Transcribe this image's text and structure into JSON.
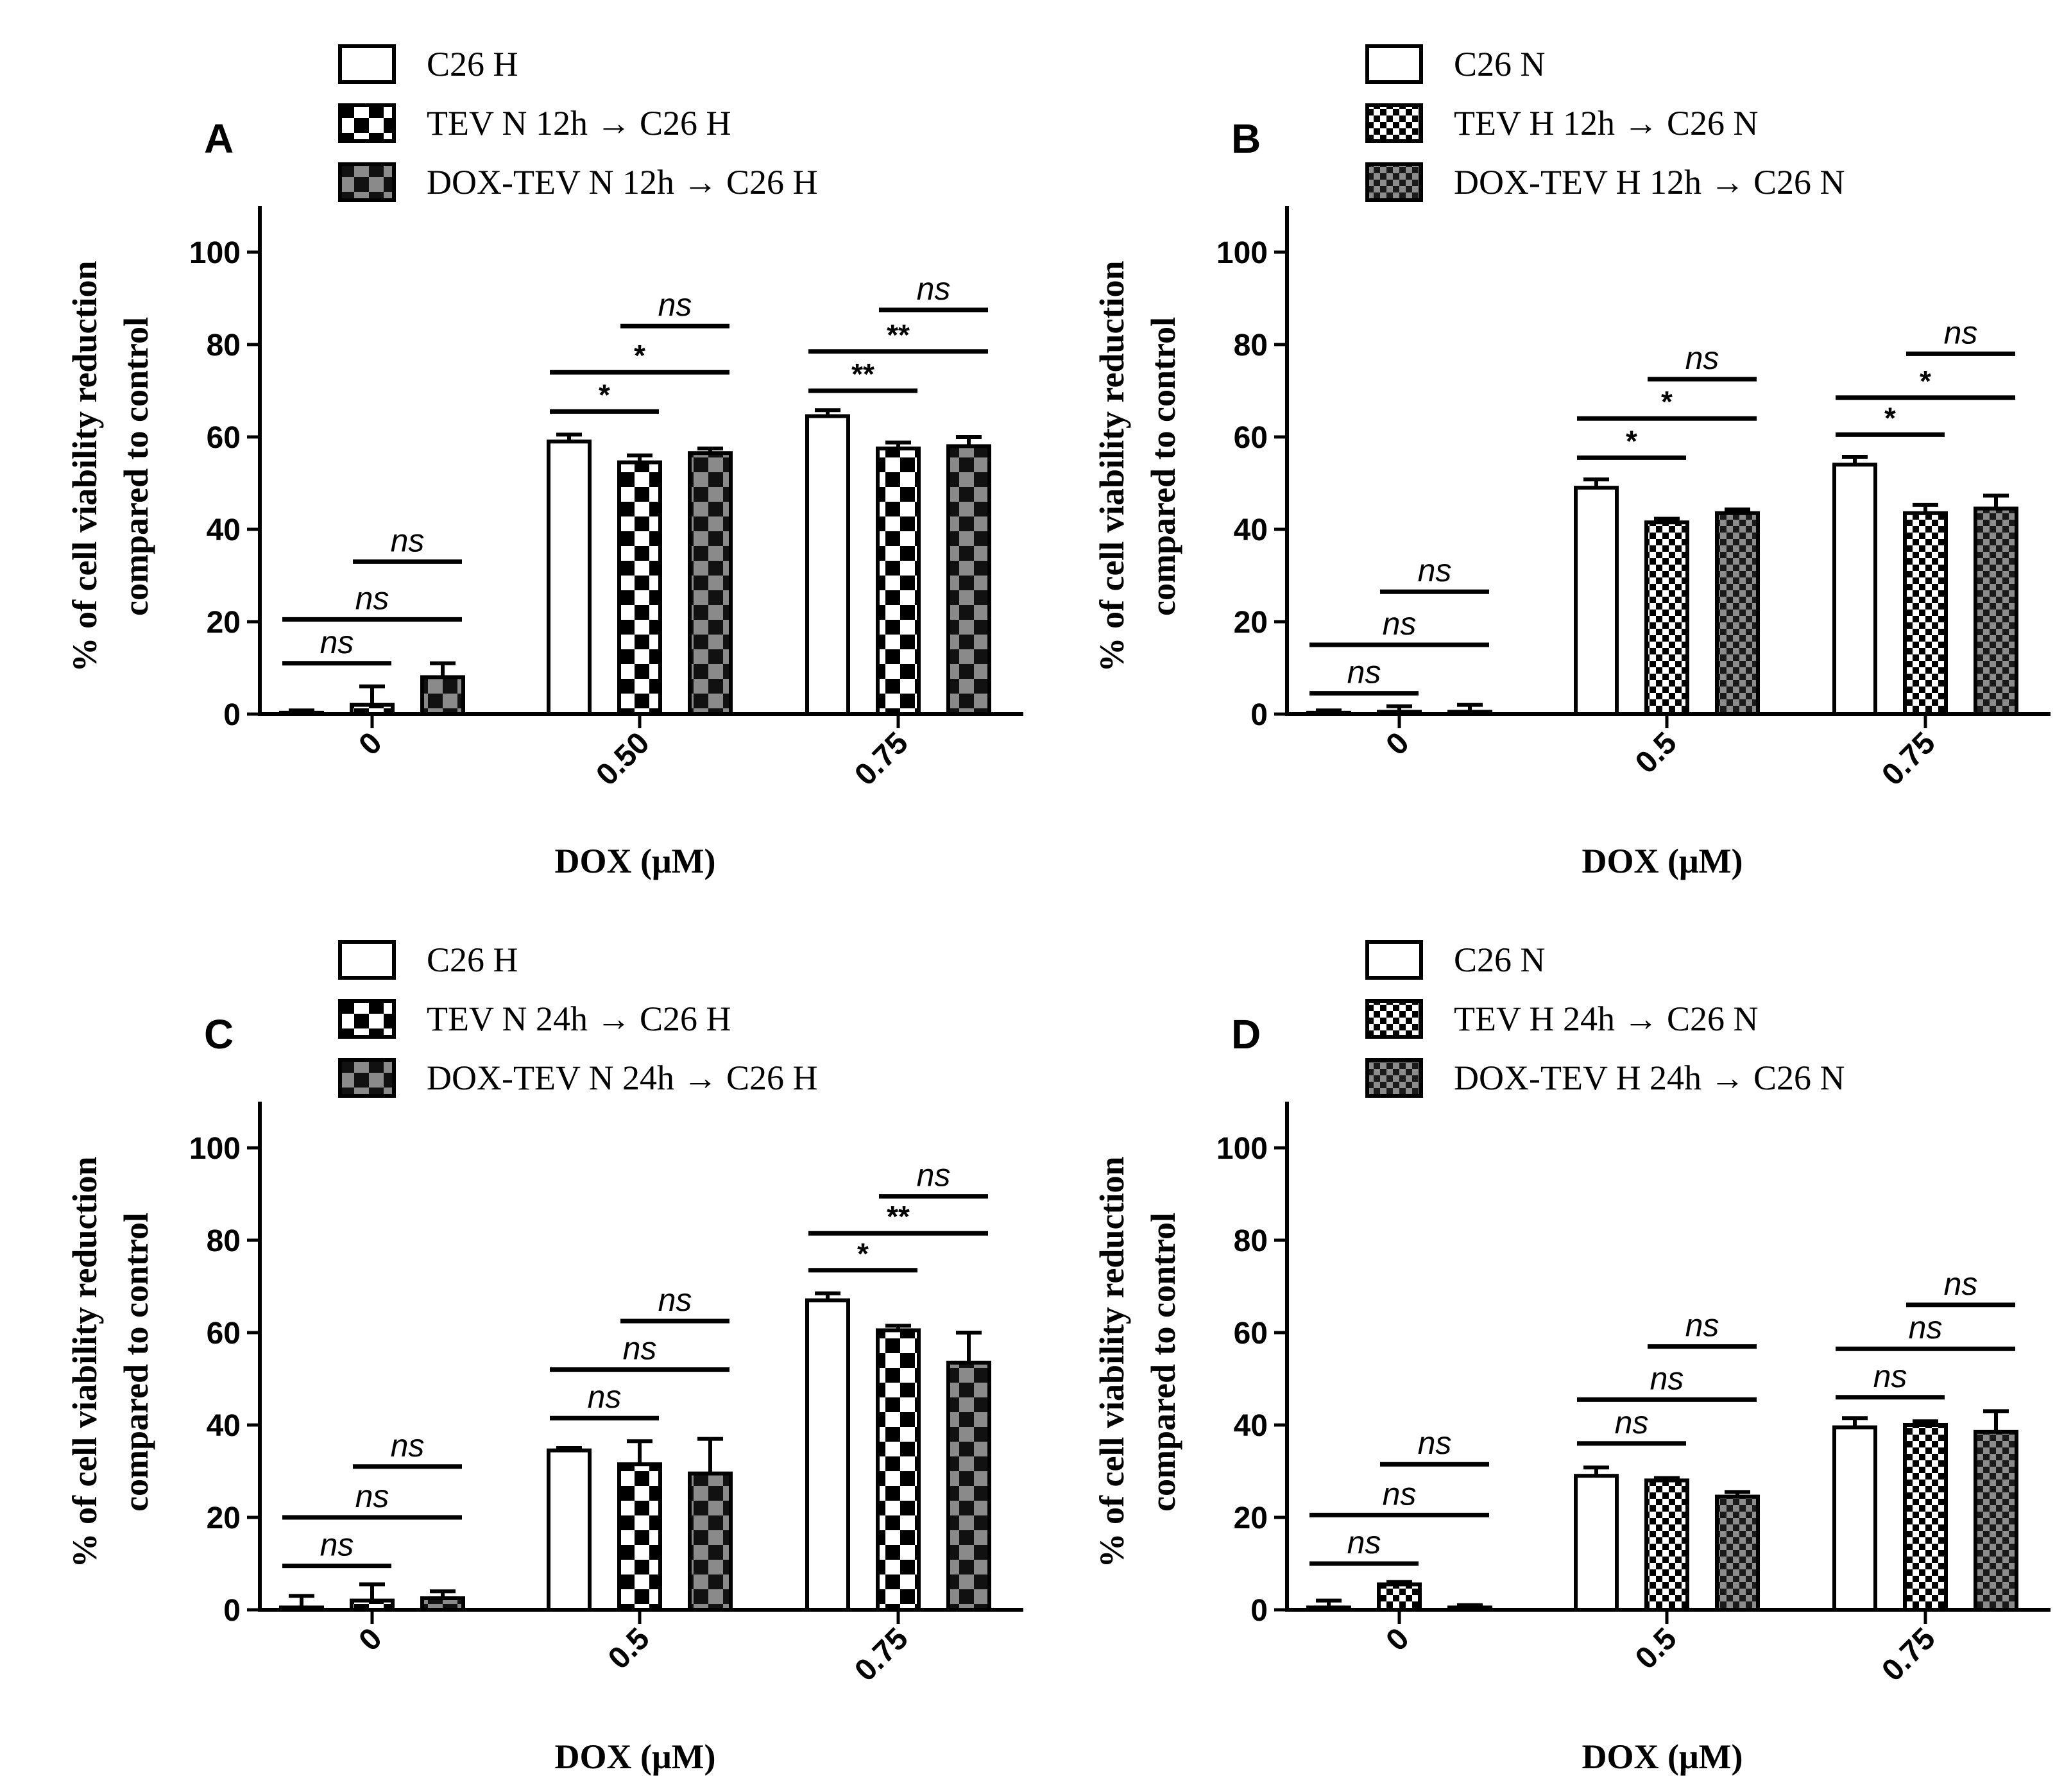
{
  "chart_data": [
    {
      "panel": "A",
      "type": "bar",
      "categories": [
        "0",
        "0.50",
        "0.75"
      ],
      "xlabel": "DOX (μM)",
      "ylabel": [
        "% of cell viability reduction",
        "compared to control"
      ],
      "ylim": [
        0,
        110
      ],
      "yticks": [
        "0",
        "20",
        "40",
        "60",
        "80",
        "100"
      ],
      "legend_position": "top",
      "series": [
        {
          "name": "C26 H",
          "pattern": "white",
          "values": [
            0.3,
            59,
            64.5
          ],
          "errors": [
            0.5,
            1.5,
            1.3
          ]
        },
        {
          "name": "TEV N 12h → C26 H",
          "pattern": "checker-bw",
          "values": [
            2,
            54.5,
            57.5
          ],
          "errors": [
            4,
            1.5,
            1.3
          ]
        },
        {
          "name": "DOX-TEV N 12h → C26 H",
          "pattern": "checker-gray",
          "values": [
            8,
            56.5,
            58
          ],
          "errors": [
            3,
            1,
            2
          ]
        }
      ],
      "significance": [
        [
          {
            "label": "ns",
            "y": 11,
            "from": 0,
            "to": 1
          },
          {
            "label": "ns",
            "y": 20.5,
            "from": 0,
            "to": 2
          },
          {
            "label": "ns",
            "y": 33,
            "from": 1,
            "to": 2
          }
        ],
        [
          {
            "label": "*",
            "y": 65.5,
            "from": 0,
            "to": 1
          },
          {
            "label": "*",
            "y": 74,
            "from": 0,
            "to": 2
          },
          {
            "label": "ns",
            "y": 84,
            "from": 1,
            "to": 2
          }
        ],
        [
          {
            "label": "**",
            "y": 70,
            "from": 0,
            "to": 1
          },
          {
            "label": "**",
            "y": 78.5,
            "from": 0,
            "to": 2
          },
          {
            "label": "ns",
            "y": 87.5,
            "from": 1,
            "to": 2
          }
        ]
      ]
    },
    {
      "panel": "B",
      "type": "bar",
      "categories": [
        "0",
        "0.5",
        "0.75"
      ],
      "xlabel": "DOX (μM)",
      "ylabel": [
        "% of cell viability reduction",
        "compared to control"
      ],
      "ylim": [
        0,
        110
      ],
      "yticks": [
        "0",
        "20",
        "40",
        "60",
        "80",
        "100"
      ],
      "legend_position": "top",
      "series": [
        {
          "name": "C26 N",
          "pattern": "white",
          "values": [
            0.3,
            49,
            54
          ],
          "errors": [
            0.5,
            1.8,
            1.7
          ]
        },
        {
          "name": "TEV H 12h → C26 N",
          "pattern": "dots-fine",
          "values": [
            0.5,
            41.5,
            43.5
          ],
          "errors": [
            1.2,
            0.8,
            1.8
          ]
        },
        {
          "name": "DOX-TEV H 12h → C26 N",
          "pattern": "dots-gray",
          "values": [
            0.5,
            43.5,
            44.5
          ],
          "errors": [
            1.5,
            0.8,
            2.8
          ]
        }
      ],
      "significance": [
        [
          {
            "label": "ns",
            "y": 4.5,
            "from": 0,
            "to": 1
          },
          {
            "label": "ns",
            "y": 15,
            "from": 0,
            "to": 2
          },
          {
            "label": "ns",
            "y": 26.5,
            "from": 1,
            "to": 2
          }
        ],
        [
          {
            "label": "*",
            "y": 55.5,
            "from": 0,
            "to": 1
          },
          {
            "label": "*",
            "y": 64,
            "from": 0,
            "to": 2
          },
          {
            "label": "ns",
            "y": 72.5,
            "from": 1,
            "to": 2
          }
        ],
        [
          {
            "label": "*",
            "y": 60.5,
            "from": 0,
            "to": 1
          },
          {
            "label": "*",
            "y": 68.5,
            "from": 0,
            "to": 2
          },
          {
            "label": "ns",
            "y": 78,
            "from": 1,
            "to": 2
          }
        ]
      ]
    },
    {
      "panel": "C",
      "type": "bar",
      "categories": [
        "0",
        "0.5",
        "0.75"
      ],
      "xlabel": "DOX (μM)",
      "ylabel": [
        "% of cell viability reduction",
        "compared to control"
      ],
      "ylim": [
        0,
        110
      ],
      "yticks": [
        "0",
        "20",
        "40",
        "60",
        "80",
        "100"
      ],
      "legend_position": "top",
      "series": [
        {
          "name": "C26 H",
          "pattern": "white",
          "values": [
            0.5,
            34.5,
            67
          ],
          "errors": [
            2.5,
            0.5,
            1.5
          ]
        },
        {
          "name": "TEV N 24h → C26 H",
          "pattern": "checker-bw",
          "values": [
            2,
            31.5,
            60.5
          ],
          "errors": [
            3.5,
            5,
            1
          ]
        },
        {
          "name": "DOX-TEV N 24h → C26 H",
          "pattern": "checker-gray",
          "values": [
            2.5,
            29.5,
            53.5
          ],
          "errors": [
            1.5,
            7.5,
            6.5
          ]
        }
      ],
      "significance": [
        [
          {
            "label": "ns",
            "y": 9.5,
            "from": 0,
            "to": 1
          },
          {
            "label": "ns",
            "y": 20,
            "from": 0,
            "to": 2
          },
          {
            "label": "ns",
            "y": 31,
            "from": 1,
            "to": 2
          }
        ],
        [
          {
            "label": "ns",
            "y": 41.5,
            "from": 0,
            "to": 1
          },
          {
            "label": "ns",
            "y": 52,
            "from": 0,
            "to": 2
          },
          {
            "label": "ns",
            "y": 62.5,
            "from": 1,
            "to": 2
          }
        ],
        [
          {
            "label": "*",
            "y": 73.5,
            "from": 0,
            "to": 1
          },
          {
            "label": "**",
            "y": 81.5,
            "from": 0,
            "to": 2
          },
          {
            "label": "ns",
            "y": 89.5,
            "from": 1,
            "to": 2
          }
        ]
      ]
    },
    {
      "panel": "D",
      "type": "bar",
      "categories": [
        "0",
        "0.5",
        "0.75"
      ],
      "xlabel": "DOX (μM)",
      "ylabel": [
        "% of cell viability reduction",
        "compared to control"
      ],
      "ylim": [
        0,
        110
      ],
      "yticks": [
        "0",
        "20",
        "40",
        "60",
        "80",
        "100"
      ],
      "legend_position": "top",
      "series": [
        {
          "name": "C26 N",
          "pattern": "white",
          "values": [
            0.5,
            29,
            39.5
          ],
          "errors": [
            1.5,
            1.8,
            2
          ]
        },
        {
          "name": "TEV H 24h → C26 N",
          "pattern": "dots-fine",
          "values": [
            5.5,
            28,
            40
          ],
          "errors": [
            0.5,
            0.5,
            0.8
          ]
        },
        {
          "name": "DOX-TEV H 24h → C26 N",
          "pattern": "dots-gray",
          "values": [
            0.5,
            24.5,
            38.5
          ],
          "errors": [
            0.5,
            1,
            4.5
          ]
        }
      ],
      "significance": [
        [
          {
            "label": "ns",
            "y": 10,
            "from": 0,
            "to": 1
          },
          {
            "label": "ns",
            "y": 20.5,
            "from": 0,
            "to": 2
          },
          {
            "label": "ns",
            "y": 31.5,
            "from": 1,
            "to": 2
          }
        ],
        [
          {
            "label": "ns",
            "y": 36,
            "from": 0,
            "to": 1
          },
          {
            "label": "ns",
            "y": 45.5,
            "from": 0,
            "to": 2
          },
          {
            "label": "ns",
            "y": 57,
            "from": 1,
            "to": 2
          }
        ],
        [
          {
            "label": "ns",
            "y": 46,
            "from": 0,
            "to": 1
          },
          {
            "label": "ns",
            "y": 56.5,
            "from": 0,
            "to": 2
          },
          {
            "label": "ns",
            "y": 66,
            "from": 1,
            "to": 2
          }
        ]
      ]
    }
  ]
}
